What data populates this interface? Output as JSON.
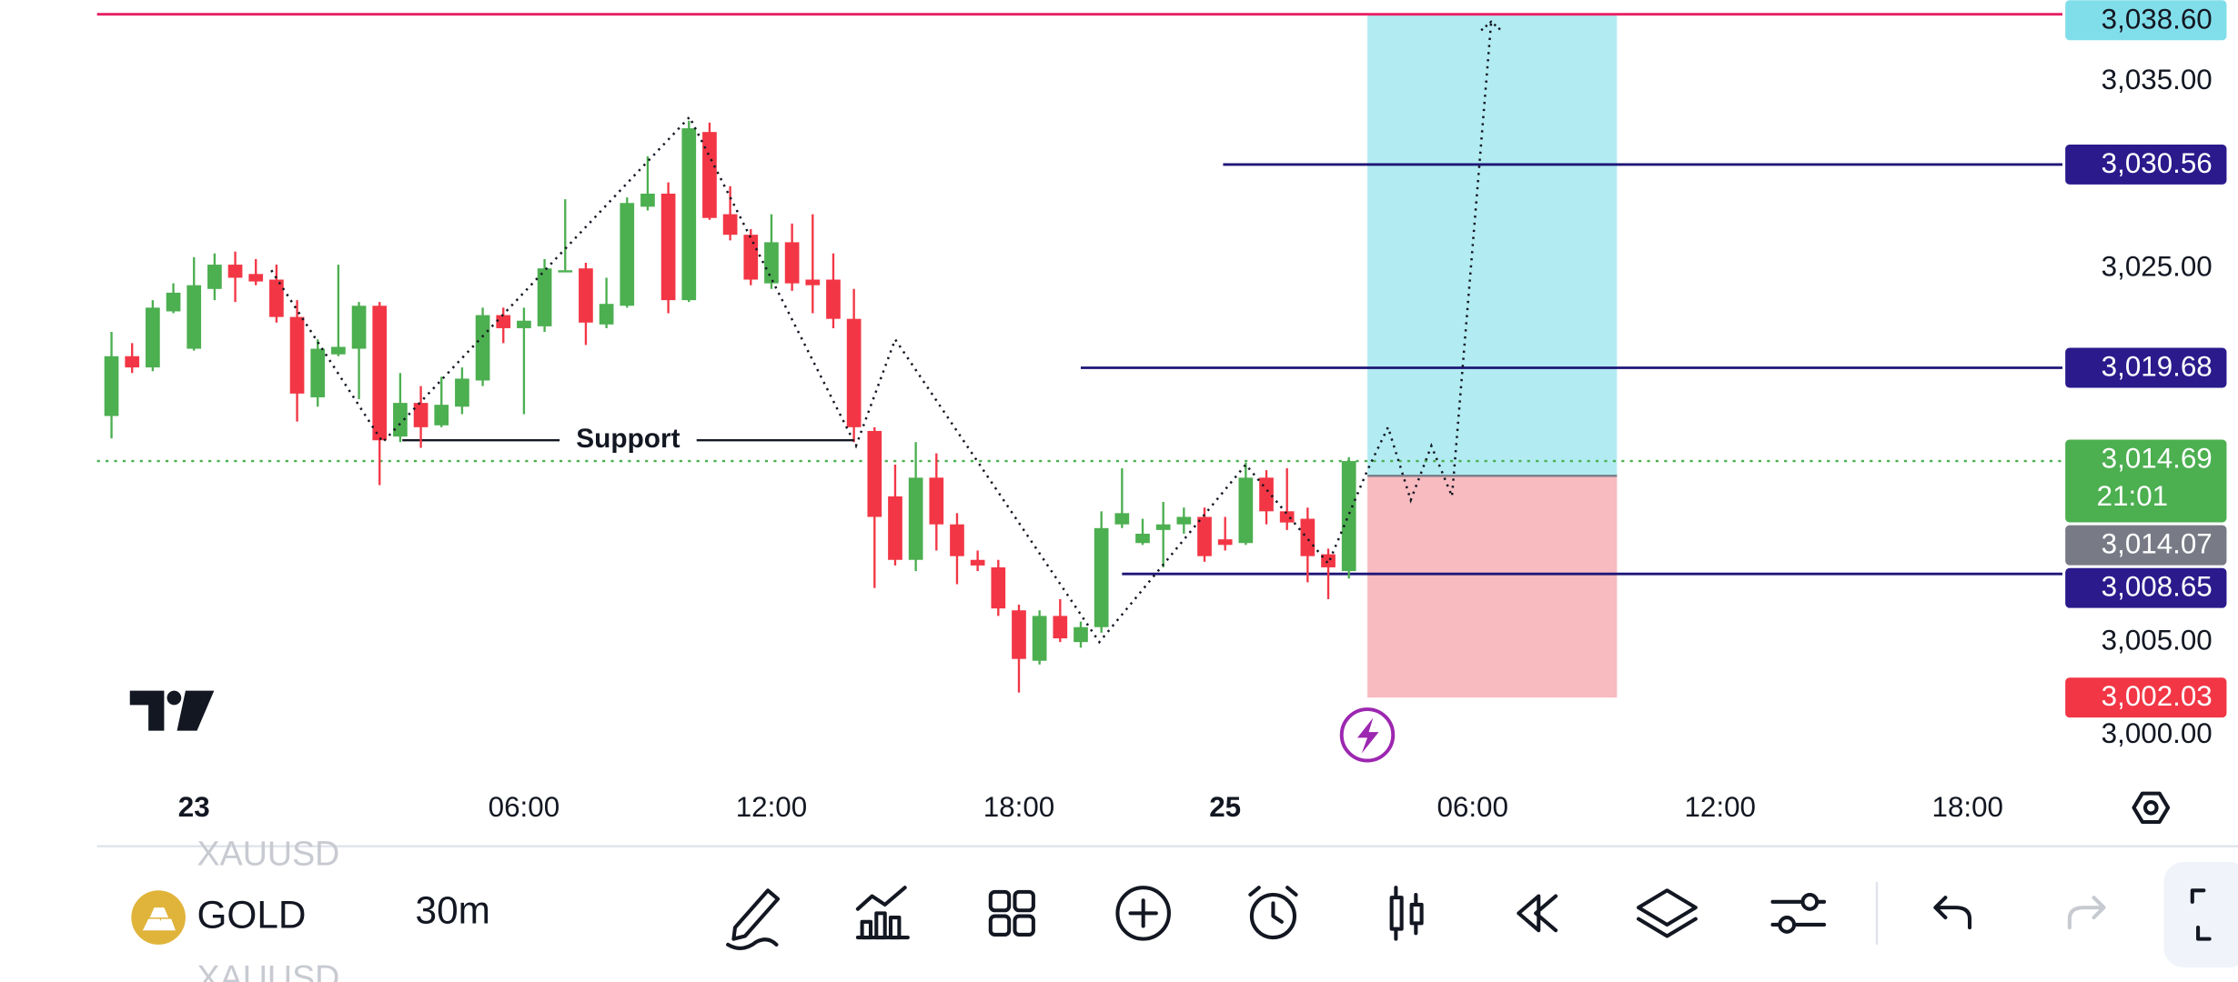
{
  "chart_data": {
    "type": "candlestick",
    "symbol": "GOLD",
    "ticker": [
      "XAUUSD",
      "XAUUSD"
    ],
    "interval": "30m",
    "open": [
      3017.1,
      3020.3,
      3019.7,
      3022.7,
      3020.7,
      3023.9,
      3025.2,
      3024.7,
      3024.4,
      3022.4,
      3018.1,
      3020.4,
      3020.7,
      3023.0,
      3016.0,
      3017.8,
      3016.6,
      3017.6,
      3019.0,
      3022.5,
      3021.8,
      3021.9,
      3024.9,
      3025.0,
      3022.0,
      3023.0,
      3028.3,
      3029.0,
      3023.3,
      3032.3,
      3027.9,
      3026.8,
      3024.2,
      3026.4,
      3024.4,
      3024.4,
      3022.3,
      3016.3,
      3012.8,
      3009.4,
      3013.8,
      3011.3,
      3009.4,
      3009.0,
      3006.7,
      3004.0,
      3006.4,
      3005.0,
      3005.8,
      3011.3,
      3010.3,
      3011.0,
      3011.3,
      3011.7,
      3010.5,
      3010.3,
      3013.8,
      3012.0,
      3011.6,
      3009.7,
      3008.8
    ],
    "high": [
      3021.6,
      3021.0,
      3023.3,
      3024.2,
      3025.6,
      3025.8,
      3025.9,
      3025.5,
      3025.2,
      3023.3,
      3021.2,
      3025.2,
      3023.2,
      3023.2,
      3019.4,
      3018.7,
      3019.2,
      3019.7,
      3022.9,
      3022.9,
      3022.9,
      3025.5,
      3028.7,
      3025.3,
      3024.5,
      3028.8,
      3031.0,
      3029.6,
      3032.9,
      3032.8,
      3029.4,
      3027.1,
      3027.9,
      3027.4,
      3027.9,
      3025.8,
      3023.9,
      3016.5,
      3014.5,
      3015.7,
      3015.1,
      3011.9,
      3009.9,
      3009.4,
      3007.0,
      3006.7,
      3007.3,
      3006.1,
      3012.0,
      3014.3,
      3011.6,
      3012.5,
      3012.2,
      3012.2,
      3011.7,
      3014.6,
      3014.2,
      3014.3,
      3012.2,
      3010.0,
      3014.9
    ],
    "low": [
      3015.9,
      3019.4,
      3019.5,
      3022.6,
      3020.6,
      3023.3,
      3023.2,
      3024.1,
      3022.1,
      3016.8,
      3017.6,
      3020.3,
      3018.0,
      3013.4,
      3015.7,
      3015.4,
      3016.5,
      3017.2,
      3018.7,
      3021.0,
      3017.2,
      3021.6,
      3024.9,
      3020.9,
      3021.8,
      3022.9,
      3028.1,
      3022.6,
      3023.2,
      3027.6,
      3026.5,
      3024.1,
      3023.9,
      3023.8,
      3022.6,
      3021.8,
      3015.7,
      3007.9,
      3009.1,
      3008.8,
      3009.9,
      3008.1,
      3008.8,
      3006.4,
      3002.3,
      3003.8,
      3005.0,
      3004.7,
      3005.5,
      3011.1,
      3010.2,
      3009.0,
      3010.8,
      3009.3,
      3009.9,
      3010.2,
      3011.3,
      3011.0,
      3008.2,
      3007.3,
      3008.4
    ],
    "close": [
      3020.3,
      3019.7,
      3022.9,
      3023.7,
      3024.1,
      3025.2,
      3024.5,
      3024.3,
      3022.4,
      3018.3,
      3020.7,
      3020.8,
      3023.0,
      3015.8,
      3017.8,
      3016.5,
      3017.7,
      3019.1,
      3022.5,
      3021.8,
      3022.2,
      3025.0,
      3024.9,
      3022.1,
      3023.1,
      3028.5,
      3029.0,
      3023.3,
      3032.5,
      3027.7,
      3026.8,
      3024.4,
      3026.4,
      3024.2,
      3024.1,
      3022.3,
      3016.5,
      3011.7,
      3009.4,
      3013.8,
      3011.3,
      3009.6,
      3009.1,
      3006.8,
      3004.1,
      3006.4,
      3005.2,
      3005.8,
      3011.1,
      3011.9,
      3010.8,
      3011.3,
      3011.7,
      3009.6,
      3010.2,
      3013.8,
      3012.0,
      3011.4,
      3009.6,
      3009.0,
      3014.69
    ],
    "up_color": "#4caf50",
    "down_color": "#f23645",
    "xlim": [
      -0.7,
      94.6
    ],
    "xticks": [
      {
        "value": 4,
        "label": "23"
      },
      {
        "value": 20,
        "label": "06:00"
      },
      {
        "value": 32,
        "label": "12:00"
      },
      {
        "value": 44,
        "label": "18:00"
      },
      {
        "value": 54,
        "label": "25"
      },
      {
        "value": 66,
        "label": "06:00"
      },
      {
        "value": 78,
        "label": "12:00"
      },
      {
        "value": 90,
        "label": "18:00"
      }
    ],
    "ylim": [
      2997.74,
      3039.35
    ],
    "yticks": [
      {
        "value": 3035,
        "label": "3,035.00"
      },
      {
        "value": 3025,
        "label": "3,025.00"
      },
      {
        "value": 3005,
        "label": "3,005.00"
      },
      {
        "value": 3000,
        "label": "3,000.00"
      }
    ],
    "price_labels": [
      {
        "value": 3038.6,
        "label": "3,038.60",
        "bg": "#80deea",
        "color": "#131722",
        "line": "solid",
        "line_color": "#e91e63"
      },
      {
        "value": 3030.56,
        "label": "3,030.56",
        "bg": "#2a1a8c",
        "color": "#ffffff",
        "line": "solid",
        "line_color": "#1e1677",
        "from_x": 53.9
      },
      {
        "value": 3019.68,
        "label": "3,019.68",
        "bg": "#2a1a8c",
        "color": "#ffffff",
        "line": "solid",
        "line_color": "#1e1677",
        "from_x": 47.0
      },
      {
        "value": 3014.69,
        "label": "3,014.69",
        "countdown": "21:01",
        "bg": "#4caf50",
        "color": "#ffffff",
        "line": "dotted",
        "line_color": "#4caf50"
      },
      {
        "value": 3014.07,
        "label": "3,014.07",
        "bg": "#787b86",
        "color": "#ffffff"
      },
      {
        "value": 3008.65,
        "label": "3,008.65",
        "bg": "#2a1a8c",
        "color": "#ffffff",
        "line": "solid",
        "line_color": "#1e1677",
        "from_x": 49.0
      },
      {
        "value": 3002.03,
        "label": "3,002.03",
        "bg": "#f23645",
        "color": "#ffffff"
      }
    ],
    "position": {
      "target": 3038.6,
      "entry": 3013.9,
      "stop": 3002.03,
      "x_range": [
        60.9,
        73.0
      ],
      "profit_color": "#b2ebf2",
      "loss_color": "#f8bbc0"
    },
    "support": {
      "label": "Support",
      "value": 3015.8,
      "x_range": [
        14.1,
        36.0
      ]
    },
    "projection": {
      "x": [
        7.75,
        13.15,
        28.03,
        36.1,
        38.0,
        47.9,
        55.0,
        59.0,
        60.9,
        61.9,
        63.0,
        64.0,
        65.0,
        66.9
      ],
      "y": [
        3024.9,
        3015.7,
        3033.1,
        3015.5,
        3021.2,
        3005.0,
        3014.5,
        3009.2,
        3014.2,
        3016.5,
        3012.6,
        3015.5,
        3012.8,
        3038.2
      ]
    }
  }
}
